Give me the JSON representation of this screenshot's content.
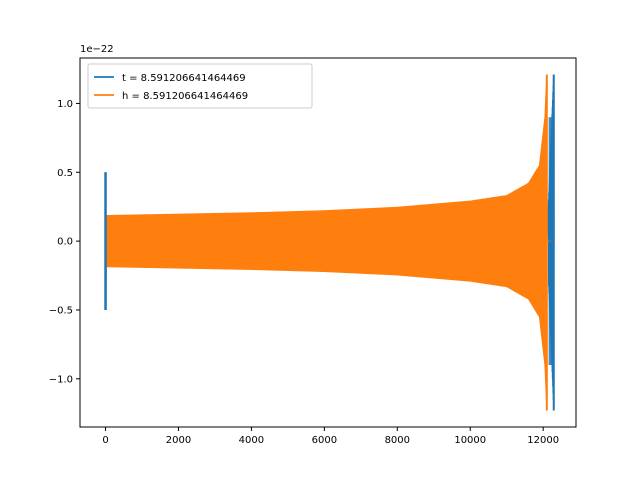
{
  "chart_data": {
    "type": "line",
    "title": "",
    "xlabel": "",
    "ylabel": "",
    "offset_label": "1e−22",
    "xlim": [
      -700,
      12900
    ],
    "ylim": [
      -1.35,
      1.33
    ],
    "x_ticks": [
      0,
      2000,
      4000,
      6000,
      8000,
      10000,
      12000
    ],
    "y_ticks": [
      -1.0,
      -0.5,
      0.0,
      0.5,
      1.0
    ],
    "x_tick_labels": [
      "0",
      "2000",
      "4000",
      "6000",
      "8000",
      "10000",
      "12000"
    ],
    "y_tick_labels": [
      "−1.0",
      "−0.5",
      "0.0",
      "0.5",
      "1.0"
    ],
    "grid": false,
    "legend_position": "top-left",
    "series": [
      {
        "name": "t = 8.591206641464469",
        "color": "#1f77b4",
        "kind": "chirp",
        "x_start": 0,
        "x_end": 12290,
        "amplitude_start": 0.5,
        "amplitude_peak": 1.21,
        "values_sample": [
          {
            "x": 0,
            "ymin": -0.5,
            "ymax": 0.5
          },
          {
            "x": 12290,
            "ymin": -1.23,
            "ymax": 1.21
          }
        ]
      },
      {
        "name": "h = 8.591206641464469",
        "color": "#ff7f0e",
        "kind": "inspiral",
        "x_start": 0,
        "x_end": 12120,
        "envelope": [
          {
            "x": 0,
            "amp": 0.185
          },
          {
            "x": 2000,
            "amp": 0.195
          },
          {
            "x": 4000,
            "amp": 0.205
          },
          {
            "x": 6000,
            "amp": 0.22
          },
          {
            "x": 8000,
            "amp": 0.245
          },
          {
            "x": 10000,
            "amp": 0.29
          },
          {
            "x": 11000,
            "amp": 0.33
          },
          {
            "x": 11600,
            "amp": 0.42
          },
          {
            "x": 11900,
            "amp": 0.55
          },
          {
            "x": 12050,
            "amp": 0.9
          },
          {
            "x": 12100,
            "amp": 1.21
          }
        ],
        "ringdown_end": 12290
      }
    ]
  }
}
